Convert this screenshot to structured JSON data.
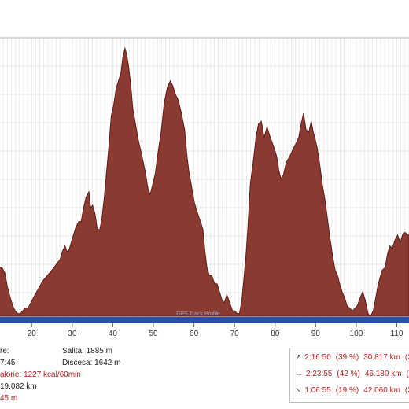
{
  "chart_data": {
    "type": "area",
    "x_ticks": [
      "20",
      "30",
      "40",
      "50",
      "60",
      "70",
      "80",
      "90",
      "100",
      "110"
    ],
    "x_tick_values": [
      20,
      30,
      40,
      50,
      60,
      70,
      80,
      90,
      100,
      110
    ],
    "xlim": [
      12,
      113
    ],
    "ylim": [
      0,
      1
    ],
    "fill_color": "#8b3a32",
    "stroke_color": "#5a1c18",
    "base_band_color": "#2a4fb5",
    "grid": true,
    "watermark": "GPS Track Profile",
    "series": [
      {
        "x": [
          12,
          12.7,
          13.4,
          14.0,
          14.7,
          15.3,
          15.9,
          16.6,
          17.2,
          17.8,
          18.4,
          19.1,
          19.8,
          20.5,
          21.6,
          22.7,
          23.8,
          25,
          26,
          27,
          27.6,
          28.2,
          28.7,
          29.1,
          29.7,
          30.3,
          30.9,
          31.6,
          32.2,
          32.8,
          33.4,
          34.1,
          34.5,
          35,
          35.6,
          36.2,
          36.8,
          37.3,
          37.9,
          38.5,
          39.1,
          39.6,
          40.2,
          40.8,
          41.4,
          42,
          42.5,
          43,
          43.4,
          43.9,
          44.4,
          44.9,
          45.6,
          46.3,
          47.2,
          47.9,
          48.7,
          49.2,
          49.9,
          50.5,
          51.2,
          51.9,
          52.7,
          53.5,
          54.2,
          54.8,
          55.4,
          56.1,
          56.9,
          57.7,
          58.3,
          58.8,
          59.4,
          60.1,
          60.9,
          61.6,
          62.2,
          62.7,
          63.2,
          63.8,
          64.4,
          65.1,
          65.7,
          66.3,
          66.9,
          67.5,
          68.1,
          68.8,
          69.5,
          70.1,
          70.6,
          71.2,
          71.8,
          72.3,
          72.8,
          73.3,
          73.9,
          74.6,
          75.3,
          75.9,
          76.6,
          77.3,
          78,
          78.6,
          79.3,
          79.8,
          80.4,
          80.9,
          81.4,
          82,
          82.8,
          83.6,
          84.5,
          85.2,
          85.8,
          86.4,
          87,
          87.6,
          88.3,
          88.9,
          89.4,
          89.8,
          90.4,
          91.1,
          91.7,
          92.3,
          92.9,
          93.5,
          94.2,
          94.8,
          95.4,
          95.9,
          96.5,
          97.1,
          97.7,
          98.3,
          99.1,
          99.7,
          100.3,
          101,
          101.6,
          102.2,
          102.9,
          103.5,
          104.2,
          104.7,
          105.3,
          105.8,
          106.4,
          107.1,
          107.7,
          108.3,
          108.9,
          109.5,
          110.2,
          110.8,
          111.4,
          112,
          112.7,
          113
        ],
        "y": [
          0.18,
          0.18,
          0.16,
          0.11,
          0.07,
          0.04,
          0.02,
          0.01,
          0.01,
          0.02,
          0.03,
          0.03,
          0.05,
          0.07,
          0.1,
          0.13,
          0.15,
          0.17,
          0.19,
          0.21,
          0.24,
          0.26,
          0.24,
          0.24,
          0.27,
          0.3,
          0.33,
          0.35,
          0.35,
          0.4,
          0.44,
          0.46,
          0.4,
          0.41,
          0.38,
          0.32,
          0.32,
          0.36,
          0.44,
          0.54,
          0.64,
          0.74,
          0.78,
          0.84,
          0.87,
          0.9,
          0.96,
          0.99,
          0.97,
          0.92,
          0.86,
          0.77,
          0.71,
          0.65,
          0.59,
          0.54,
          0.47,
          0.45,
          0.49,
          0.53,
          0.61,
          0.68,
          0.79,
          0.85,
          0.87,
          0.85,
          0.82,
          0.8,
          0.75,
          0.69,
          0.59,
          0.53,
          0.48,
          0.42,
          0.38,
          0.35,
          0.32,
          0.24,
          0.18,
          0.15,
          0.15,
          0.12,
          0.12,
          0.09,
          0.06,
          0.05,
          0.08,
          0.05,
          0.02,
          0.02,
          0.01,
          0.01,
          0.06,
          0.14,
          0.22,
          0.33,
          0.49,
          0.57,
          0.66,
          0.71,
          0.72,
          0.66,
          0.7,
          0.67,
          0.64,
          0.62,
          0.59,
          0.54,
          0.51,
          0.52,
          0.57,
          0.59,
          0.62,
          0.64,
          0.66,
          0.71,
          0.75,
          0.69,
          0.68,
          0.72,
          0.68,
          0.66,
          0.62,
          0.55,
          0.48,
          0.43,
          0.36,
          0.29,
          0.22,
          0.17,
          0.15,
          0.12,
          0.09,
          0.07,
          0.04,
          0.03,
          0.02,
          0.03,
          0.04,
          0.07,
          0.09,
          0.06,
          0.01,
          0.0,
          0.02,
          0.06,
          0.11,
          0.14,
          0.17,
          0.18,
          0.23,
          0.26,
          0.25,
          0.28,
          0.3,
          0.27,
          0.3,
          0.31,
          0.3,
          0.3
        ]
      }
    ]
  },
  "stats": {
    "left_partial_1": "re:",
    "left_partial_2": "7:45",
    "calories": "alorie: 1227 kcal/60min",
    "distance": "19.082 km",
    "left_partial_5": "45 m",
    "ascent": "Salita: 1885 m",
    "descent": "Discesa: 1642 m"
  },
  "splits": {
    "rows": [
      {
        "arrow": "↗",
        "time": "2:16:50",
        "pct": "(39 %)",
        "km": "30.817 km",
        "extra": "(2"
      },
      {
        "arrow": "→",
        "time": "2:23:55",
        "pct": "(42 %)",
        "km": "46.180 km",
        "extra": "(2"
      },
      {
        "arrow": "↘",
        "time": "1:06:55",
        "pct": "(19 %)",
        "km": "42.060 km",
        "extra": "(2"
      }
    ]
  }
}
